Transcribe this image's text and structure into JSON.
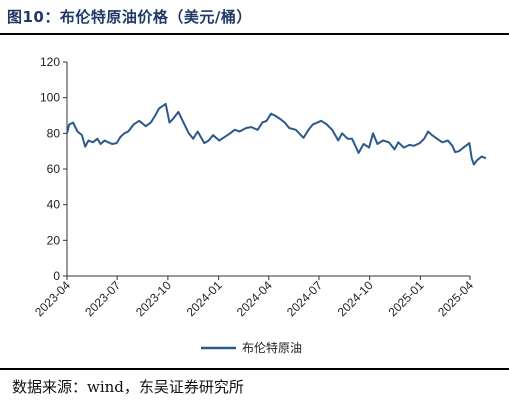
{
  "figure": {
    "title": "图10：布伦特原油价格（美元/桶）",
    "source": "数据来源：wind，东吴证券研究所"
  },
  "colors": {
    "series": "#2a5a8a",
    "title": "#1f3864"
  },
  "chart_data": {
    "type": "line",
    "title": "",
    "xlabel": "",
    "ylabel": "",
    "ylim": [
      0,
      120
    ],
    "yticks": [
      "0",
      "20",
      "40",
      "60",
      "80",
      "100",
      "120"
    ],
    "xlim": [
      "2023-04",
      "2025-04"
    ],
    "xticks": [
      "2023-04",
      "2023-07",
      "2023-10",
      "2024-01",
      "2024-04",
      "2024-07",
      "2024-10",
      "2025-01",
      "2025-04"
    ],
    "grid": false,
    "legend_position": "bottom-center",
    "series": [
      {
        "name": "布伦特原油",
        "points": [
          [
            "2023-04-01",
            80
          ],
          [
            "2023-04-05",
            85
          ],
          [
            "2023-04-12",
            86
          ],
          [
            "2023-04-20",
            81
          ],
          [
            "2023-04-28",
            79
          ],
          [
            "2023-05-04",
            72.5
          ],
          [
            "2023-05-10",
            76
          ],
          [
            "2023-05-18",
            75
          ],
          [
            "2023-05-26",
            77
          ],
          [
            "2023-06-01",
            74
          ],
          [
            "2023-06-08",
            76
          ],
          [
            "2023-06-15",
            75
          ],
          [
            "2023-06-22",
            74
          ],
          [
            "2023-06-30",
            74.5
          ],
          [
            "2023-07-07",
            78
          ],
          [
            "2023-07-14",
            80
          ],
          [
            "2023-07-21",
            81
          ],
          [
            "2023-07-31",
            85
          ],
          [
            "2023-08-10",
            87
          ],
          [
            "2023-08-22",
            84
          ],
          [
            "2023-08-31",
            86
          ],
          [
            "2023-09-08",
            90
          ],
          [
            "2023-09-15",
            94
          ],
          [
            "2023-09-27",
            96.5
          ],
          [
            "2023-10-04",
            86
          ],
          [
            "2023-10-10",
            88
          ],
          [
            "2023-10-20",
            92
          ],
          [
            "2023-10-31",
            85
          ],
          [
            "2023-11-08",
            80
          ],
          [
            "2023-11-16",
            77
          ],
          [
            "2023-11-24",
            81
          ],
          [
            "2023-12-06",
            74.5
          ],
          [
            "2023-12-14",
            76
          ],
          [
            "2023-12-22",
            79
          ],
          [
            "2024-01-02",
            76
          ],
          [
            "2024-01-12",
            78
          ],
          [
            "2024-01-22",
            80
          ],
          [
            "2024-01-30",
            82
          ],
          [
            "2024-02-08",
            81
          ],
          [
            "2024-02-20",
            83
          ],
          [
            "2024-02-29",
            83.5
          ],
          [
            "2024-03-12",
            82
          ],
          [
            "2024-03-20",
            86
          ],
          [
            "2024-03-28",
            87
          ],
          [
            "2024-04-05",
            91
          ],
          [
            "2024-04-12",
            90
          ],
          [
            "2024-04-22",
            88
          ],
          [
            "2024-04-30",
            86
          ],
          [
            "2024-05-08",
            83
          ],
          [
            "2024-05-20",
            82
          ],
          [
            "2024-06-03",
            77.5
          ],
          [
            "2024-06-12",
            82
          ],
          [
            "2024-06-20",
            85
          ],
          [
            "2024-06-28",
            86
          ],
          [
            "2024-07-05",
            87
          ],
          [
            "2024-07-15",
            85
          ],
          [
            "2024-07-25",
            82
          ],
          [
            "2024-08-05",
            76
          ],
          [
            "2024-08-12",
            80
          ],
          [
            "2024-08-22",
            77
          ],
          [
            "2024-08-30",
            77
          ],
          [
            "2024-09-05",
            73
          ],
          [
            "2024-09-11",
            69
          ],
          [
            "2024-09-20",
            74
          ],
          [
            "2024-09-30",
            72
          ],
          [
            "2024-10-07",
            80
          ],
          [
            "2024-10-15",
            74
          ],
          [
            "2024-10-25",
            76
          ],
          [
            "2024-11-05",
            75
          ],
          [
            "2024-11-15",
            71
          ],
          [
            "2024-11-22",
            75
          ],
          [
            "2024-12-02",
            72
          ],
          [
            "2024-12-12",
            73.5
          ],
          [
            "2024-12-20",
            73
          ],
          [
            "2024-12-31",
            74.5
          ],
          [
            "2025-01-08",
            77
          ],
          [
            "2025-01-15",
            81
          ],
          [
            "2025-01-22",
            79
          ],
          [
            "2025-01-31",
            77
          ],
          [
            "2025-02-10",
            75
          ],
          [
            "2025-02-20",
            76
          ],
          [
            "2025-02-28",
            73
          ],
          [
            "2025-03-05",
            69.5
          ],
          [
            "2025-03-12",
            70
          ],
          [
            "2025-03-20",
            72
          ],
          [
            "2025-03-31",
            74.5
          ],
          [
            "2025-04-04",
            66
          ],
          [
            "2025-04-08",
            62.5
          ],
          [
            "2025-04-14",
            65
          ],
          [
            "2025-04-22",
            67
          ],
          [
            "2025-04-30",
            66
          ]
        ]
      }
    ]
  }
}
